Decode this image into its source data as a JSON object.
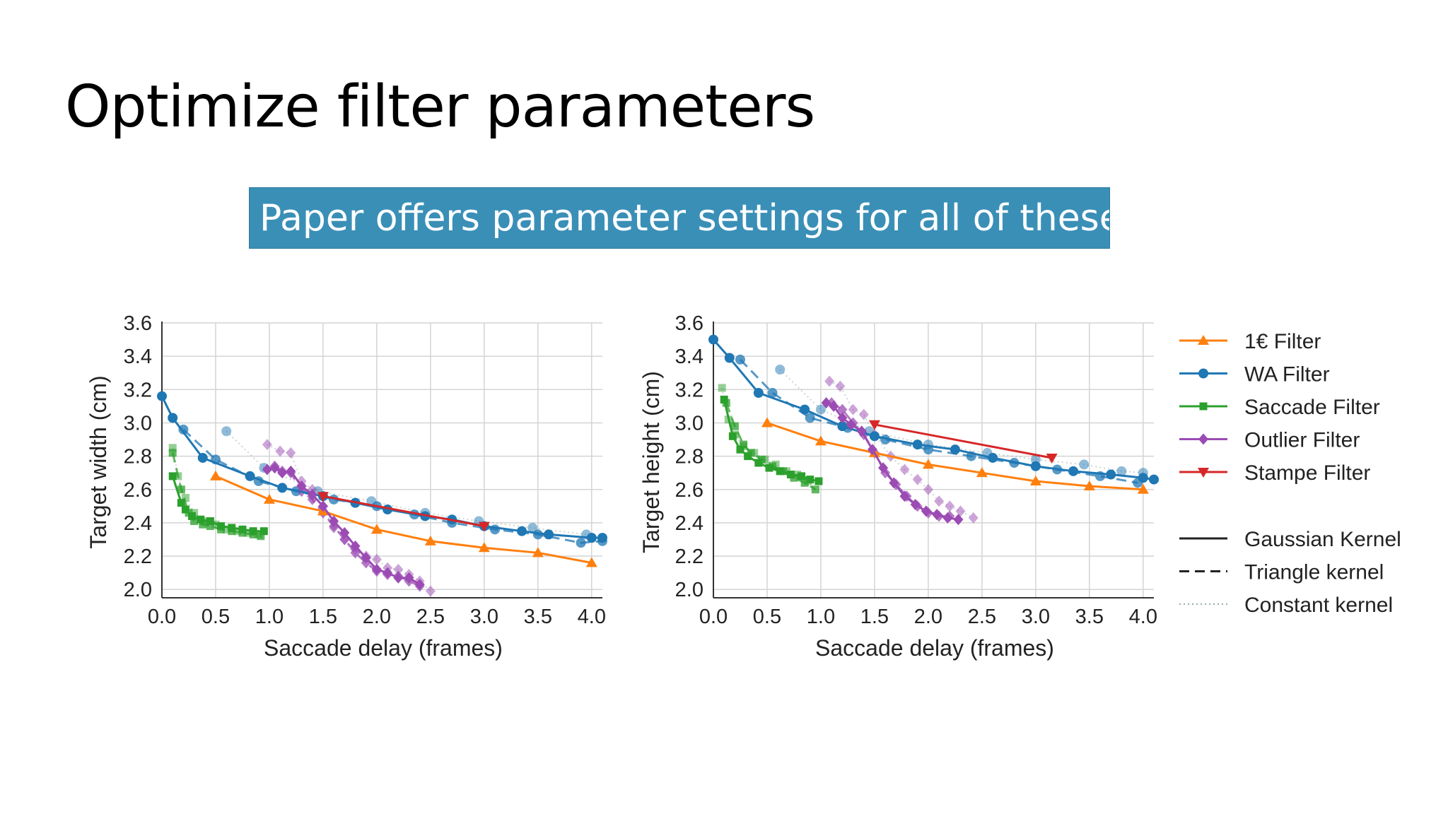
{
  "slide": {
    "title": "Optimize filter parameters",
    "callout": "Paper offers parameter settings for all of these!",
    "callout_color": "#3a8fb7"
  },
  "legend": {
    "filters": [
      {
        "name": "1€ Filter",
        "color": "#ff7f0e",
        "marker": "triangle-up"
      },
      {
        "name": "WA Filter",
        "color": "#1f77b4",
        "marker": "circle"
      },
      {
        "name": "Saccade Filter",
        "color": "#2ca02c",
        "marker": "square"
      },
      {
        "name": "Outlier Filter",
        "color": "#9b4bb3",
        "marker": "diamond"
      },
      {
        "name": "Stampe Filter",
        "color": "#d62728",
        "marker": "triangle-down"
      }
    ],
    "kernels": [
      {
        "name": "Gaussian Kernel",
        "dash": "solid"
      },
      {
        "name": "Triangle kernel",
        "dash": "dashed"
      },
      {
        "name": "Constant kernel",
        "dash": "dotted"
      }
    ]
  },
  "chart_data": [
    {
      "type": "line",
      "xlabel": "Saccade delay (frames)",
      "ylabel": "Target width (cm)",
      "xlim": [
        0,
        4.1
      ],
      "ylim": [
        1.95,
        3.6
      ],
      "xticks": [
        "0.0",
        "0.5",
        "1.0",
        "1.5",
        "2.0",
        "2.5",
        "3.0",
        "3.5",
        "4.0"
      ],
      "yticks": [
        "2.0",
        "2.2",
        "2.4",
        "2.6",
        "2.8",
        "3.0",
        "3.2",
        "3.4",
        "3.6"
      ],
      "grid": true,
      "series": [
        {
          "filter": "1€ Filter",
          "kernel": "Gaussian Kernel",
          "x": [
            0.5,
            1.0,
            1.5,
            2.0,
            2.5,
            3.0,
            3.5,
            4.0
          ],
          "y": [
            2.68,
            2.54,
            2.47,
            2.36,
            2.29,
            2.25,
            2.22,
            2.16
          ]
        },
        {
          "filter": "WA Filter",
          "kernel": "Gaussian Kernel",
          "x": [
            0.0,
            0.1,
            0.38,
            0.82,
            1.12,
            1.5,
            1.8,
            2.1,
            2.45,
            2.7,
            3.0,
            3.35,
            3.6,
            4.0,
            4.1
          ],
          "y": [
            3.16,
            3.03,
            2.79,
            2.68,
            2.61,
            2.56,
            2.52,
            2.48,
            2.44,
            2.42,
            2.38,
            2.35,
            2.33,
            2.31,
            2.31
          ]
        },
        {
          "filter": "WA Filter",
          "kernel": "Triangle kernel",
          "x": [
            0.2,
            0.5,
            0.9,
            1.25,
            1.6,
            2.0,
            2.35,
            2.7,
            3.1,
            3.5,
            3.9,
            4.1
          ],
          "y": [
            2.96,
            2.78,
            2.65,
            2.59,
            2.54,
            2.5,
            2.45,
            2.4,
            2.36,
            2.33,
            2.28,
            2.29
          ]
        },
        {
          "filter": "WA Filter",
          "kernel": "Constant kernel",
          "x": [
            0.6,
            0.95,
            1.45,
            1.95,
            2.45,
            2.95,
            3.45,
            3.95
          ],
          "y": [
            2.95,
            2.73,
            2.59,
            2.53,
            2.46,
            2.41,
            2.37,
            2.33
          ]
        },
        {
          "filter": "Saccade Filter",
          "kernel": "Gaussian Kernel",
          "x": [
            0.1,
            0.18,
            0.22,
            0.28,
            0.36,
            0.45,
            0.55,
            0.65,
            0.75,
            0.85,
            0.95
          ],
          "y": [
            2.68,
            2.52,
            2.48,
            2.44,
            2.42,
            2.41,
            2.38,
            2.37,
            2.36,
            2.35,
            2.35
          ]
        },
        {
          "filter": "Saccade Filter",
          "kernel": "Triangle kernel",
          "x": [
            0.1,
            0.18,
            0.25,
            0.3,
            0.38,
            0.45,
            0.55,
            0.65,
            0.75,
            0.85,
            0.92
          ],
          "y": [
            2.82,
            2.6,
            2.46,
            2.41,
            2.39,
            2.38,
            2.36,
            2.35,
            2.34,
            2.33,
            2.32
          ]
        },
        {
          "filter": "Saccade Filter",
          "kernel": "Constant kernel",
          "x": [
            0.1,
            0.15,
            0.22,
            0.3,
            0.4,
            0.5,
            0.6,
            0.7,
            0.8,
            0.9
          ],
          "y": [
            2.85,
            2.68,
            2.55,
            2.46,
            2.41,
            2.39,
            2.36,
            2.35,
            2.34,
            2.33
          ]
        },
        {
          "filter": "Outlier Filter",
          "kernel": "Gaussian Kernel",
          "x": [
            0.98,
            1.05,
            1.12,
            1.2,
            1.3,
            1.4,
            1.5,
            1.6,
            1.7,
            1.8,
            1.9,
            2.0,
            2.1,
            2.2,
            2.3,
            2.4
          ],
          "y": [
            2.72,
            2.73,
            2.7,
            2.71,
            2.62,
            2.57,
            2.5,
            2.41,
            2.34,
            2.26,
            2.19,
            2.12,
            2.1,
            2.07,
            2.07,
            2.03
          ]
        },
        {
          "filter": "Outlier Filter",
          "kernel": "Triangle kernel",
          "x": [
            1.05,
            1.12,
            1.2,
            1.3,
            1.4,
            1.5,
            1.6,
            1.7,
            1.8,
            1.9,
            2.0,
            2.1,
            2.2,
            2.3,
            2.4
          ],
          "y": [
            2.74,
            2.71,
            2.7,
            2.59,
            2.54,
            2.46,
            2.38,
            2.3,
            2.22,
            2.16,
            2.11,
            2.09,
            2.08,
            2.05,
            2.02
          ]
        },
        {
          "filter": "Outlier Filter",
          "kernel": "Constant kernel",
          "x": [
            0.98,
            1.1,
            1.2,
            1.3,
            1.4,
            1.5,
            1.6,
            1.7,
            1.8,
            1.9,
            2.0,
            2.1,
            2.2,
            2.3,
            2.4,
            2.5
          ],
          "y": [
            2.87,
            2.83,
            2.82,
            2.65,
            2.6,
            2.5,
            2.37,
            2.3,
            2.24,
            2.2,
            2.18,
            2.13,
            2.12,
            2.09,
            2.05,
            1.99
          ]
        },
        {
          "filter": "Stampe Filter",
          "kernel": "Gaussian Kernel",
          "x": [
            1.5,
            3.0
          ],
          "y": [
            2.56,
            2.38
          ]
        }
      ]
    },
    {
      "type": "line",
      "xlabel": "Saccade delay (frames)",
      "ylabel": "Target height (cm)",
      "xlim": [
        0,
        4.1
      ],
      "ylim": [
        1.95,
        3.6
      ],
      "xticks": [
        "0.0",
        "0.5",
        "1.0",
        "1.5",
        "2.0",
        "2.5",
        "3.0",
        "3.5",
        "4.0"
      ],
      "yticks": [
        "2.0",
        "2.2",
        "2.4",
        "2.6",
        "2.8",
        "3.0",
        "3.2",
        "3.4",
        "3.6"
      ],
      "grid": true,
      "series": [
        {
          "filter": "1€ Filter",
          "kernel": "Gaussian Kernel",
          "x": [
            0.5,
            1.0,
            1.5,
            2.0,
            2.5,
            3.0,
            3.5,
            4.0
          ],
          "y": [
            3.0,
            2.89,
            2.82,
            2.75,
            2.7,
            2.65,
            2.62,
            2.6
          ]
        },
        {
          "filter": "WA Filter",
          "kernel": "Gaussian Kernel",
          "x": [
            0.0,
            0.15,
            0.42,
            0.85,
            1.2,
            1.5,
            1.9,
            2.25,
            2.6,
            3.0,
            3.35,
            3.7,
            4.0,
            4.1
          ],
          "y": [
            3.5,
            3.39,
            3.18,
            3.08,
            2.98,
            2.92,
            2.87,
            2.84,
            2.79,
            2.74,
            2.71,
            2.69,
            2.67,
            2.66
          ]
        },
        {
          "filter": "WA Filter",
          "kernel": "Triangle kernel",
          "x": [
            0.25,
            0.55,
            0.9,
            1.25,
            1.6,
            2.0,
            2.4,
            2.8,
            3.2,
            3.6,
            3.95
          ],
          "y": [
            3.38,
            3.18,
            3.03,
            2.97,
            2.9,
            2.84,
            2.8,
            2.76,
            2.72,
            2.68,
            2.64
          ]
        },
        {
          "filter": "WA Filter",
          "kernel": "Constant kernel",
          "x": [
            0.62,
            1.0,
            1.45,
            2.0,
            2.55,
            3.0,
            3.45,
            3.8,
            4.0
          ],
          "y": [
            3.32,
            3.08,
            2.95,
            2.87,
            2.82,
            2.78,
            2.75,
            2.71,
            2.7
          ]
        },
        {
          "filter": "Saccade Filter",
          "kernel": "Gaussian Kernel",
          "x": [
            0.1,
            0.18,
            0.25,
            0.32,
            0.42,
            0.52,
            0.62,
            0.72,
            0.82,
            0.9,
            0.98
          ],
          "y": [
            3.14,
            2.92,
            2.84,
            2.8,
            2.76,
            2.73,
            2.71,
            2.69,
            2.68,
            2.66,
            2.65
          ]
        },
        {
          "filter": "Saccade Filter",
          "kernel": "Triangle kernel",
          "x": [
            0.12,
            0.2,
            0.28,
            0.35,
            0.45,
            0.55,
            0.65,
            0.75,
            0.85,
            0.95
          ],
          "y": [
            3.12,
            2.98,
            2.87,
            2.82,
            2.78,
            2.74,
            2.71,
            2.67,
            2.64,
            2.6
          ]
        },
        {
          "filter": "Saccade Filter",
          "kernel": "Constant kernel",
          "x": [
            0.08,
            0.14,
            0.2,
            0.28,
            0.38,
            0.48,
            0.58,
            0.68,
            0.78,
            0.88
          ],
          "y": [
            3.21,
            3.02,
            2.93,
            2.86,
            2.82,
            2.78,
            2.75,
            2.71,
            2.69,
            2.65
          ]
        },
        {
          "filter": "Outlier Filter",
          "kernel": "Gaussian Kernel",
          "x": [
            1.05,
            1.12,
            1.2,
            1.28,
            1.38,
            1.48,
            1.58,
            1.68,
            1.78,
            1.88,
            1.98,
            2.08,
            2.18,
            2.28
          ],
          "y": [
            3.12,
            3.1,
            3.03,
            2.99,
            2.95,
            2.84,
            2.73,
            2.64,
            2.56,
            2.51,
            2.47,
            2.45,
            2.43,
            2.42
          ]
        },
        {
          "filter": "Outlier Filter",
          "kernel": "Triangle kernel",
          "x": [
            1.1,
            1.2,
            1.3,
            1.4,
            1.5,
            1.6,
            1.7,
            1.8,
            1.9,
            2.0,
            2.1,
            2.2
          ],
          "y": [
            3.12,
            3.08,
            3.0,
            2.93,
            2.82,
            2.7,
            2.63,
            2.56,
            2.5,
            2.46,
            2.44,
            2.44
          ]
        },
        {
          "filter": "Outlier Filter",
          "kernel": "Constant kernel",
          "x": [
            1.08,
            1.18,
            1.3,
            1.4,
            1.5,
            1.65,
            1.78,
            1.9,
            2.0,
            2.1,
            2.2,
            2.3,
            2.42
          ],
          "y": [
            3.25,
            3.22,
            3.08,
            3.05,
            2.93,
            2.8,
            2.72,
            2.66,
            2.6,
            2.53,
            2.5,
            2.47,
            2.43
          ]
        },
        {
          "filter": "Stampe Filter",
          "kernel": "Gaussian Kernel",
          "x": [
            1.5,
            3.15
          ],
          "y": [
            2.99,
            2.79
          ]
        }
      ]
    }
  ]
}
